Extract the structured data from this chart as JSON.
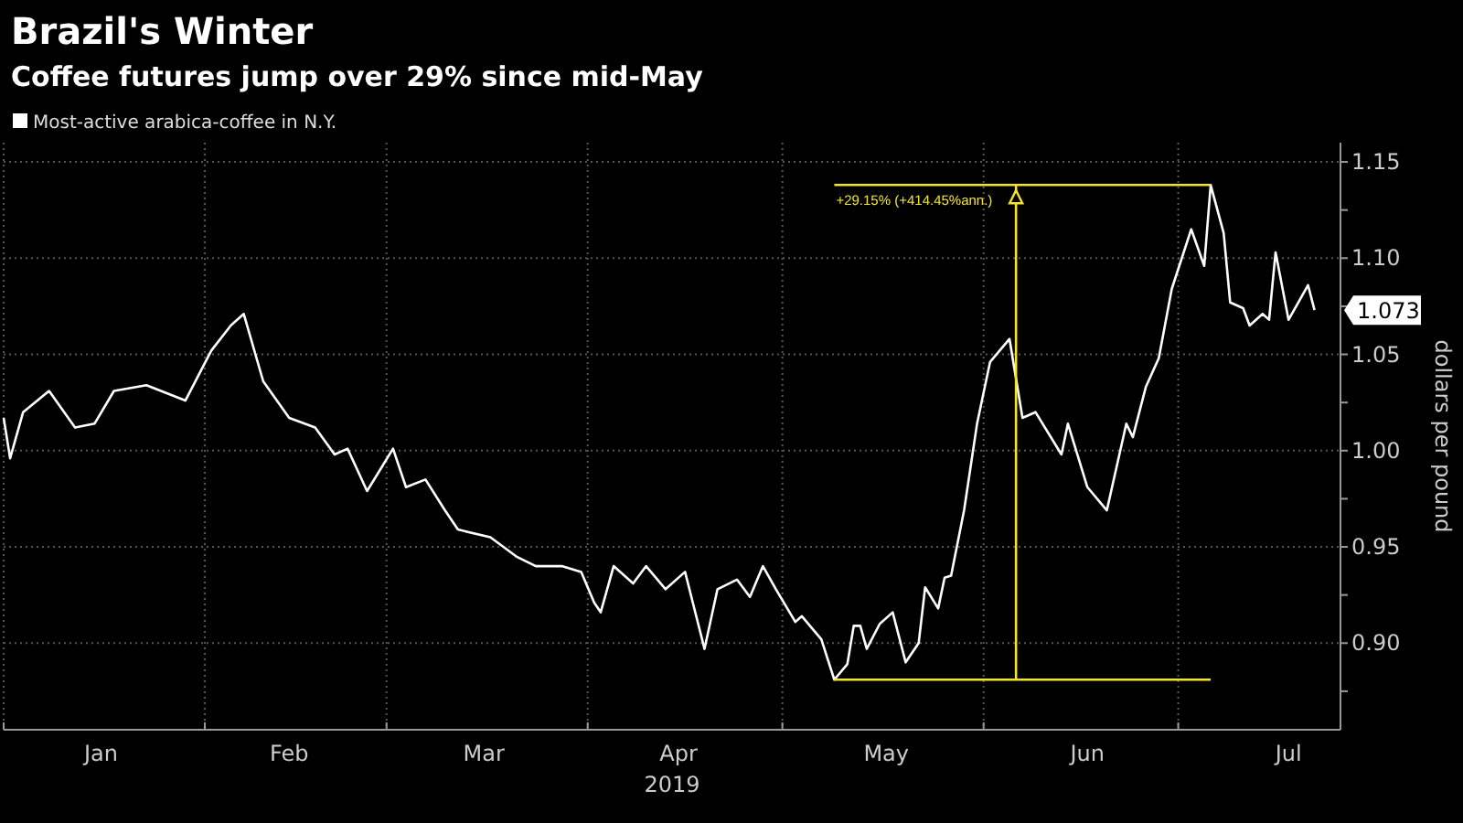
{
  "chart_data": {
    "type": "line",
    "title": "Brazil's Winter",
    "subtitle": "Coffee futures jump over 29% since mid-May",
    "ylabel": "dollars per pound",
    "xlabel": "2019",
    "legend": "top left",
    "grid": true,
    "line_style": "solid",
    "xlim": [
      "2019-01-01",
      "2019-07-26"
    ],
    "xticks": [
      {
        "value": "2019-01-01",
        "label": null
      },
      {
        "value": "2019-01-16",
        "label": "Jan"
      },
      {
        "value": "2019-02-01",
        "label": null
      },
      {
        "value": "2019-02-14",
        "label": "Feb"
      },
      {
        "value": "2019-03-01",
        "label": null
      },
      {
        "value": "2019-03-16",
        "label": "Mar"
      },
      {
        "value": "2019-04-01",
        "label": null
      },
      {
        "value": "2019-04-15",
        "label": "Apr"
      },
      {
        "value": "2019-05-01",
        "label": null
      },
      {
        "value": "2019-05-17",
        "label": "May"
      },
      {
        "value": "2019-06-01",
        "label": null
      },
      {
        "value": "2019-06-17",
        "label": "Jun"
      },
      {
        "value": "2019-07-01",
        "label": null
      },
      {
        "value": "2019-07-18",
        "label": "Jul"
      }
    ],
    "ylim": [
      0.855,
      1.16
    ],
    "yticks": [
      {
        "value": 0.875,
        "label": null
      },
      {
        "value": 0.9,
        "label": "0.90"
      },
      {
        "value": 0.925,
        "label": null
      },
      {
        "value": 0.95,
        "label": "0.95"
      },
      {
        "value": 0.975,
        "label": null
      },
      {
        "value": 1.0,
        "label": "1.00"
      },
      {
        "value": 1.025,
        "label": null
      },
      {
        "value": 1.05,
        "label": "1.05"
      },
      {
        "value": 1.075,
        "label": null
      },
      {
        "value": 1.1,
        "label": "1.10"
      },
      {
        "value": 1.125,
        "label": null
      },
      {
        "value": 1.15,
        "label": "1.15"
      }
    ],
    "series": [
      {
        "name": "Most-active arabica-coffee in N.Y.",
        "color": "#ffffff",
        "x": [
          "2019-01-01",
          "2019-01-02",
          "2019-01-04",
          "2019-01-08",
          "2019-01-12",
          "2019-01-15",
          "2019-01-18",
          "2019-01-23",
          "2019-01-29",
          "2019-02-02",
          "2019-02-05",
          "2019-02-07",
          "2019-02-10",
          "2019-02-14",
          "2019-02-18",
          "2019-02-21",
          "2019-02-23",
          "2019-02-26",
          "2019-03-02",
          "2019-03-04",
          "2019-03-07",
          "2019-03-10",
          "2019-03-12",
          "2019-03-17",
          "2019-03-21",
          "2019-03-24",
          "2019-03-28",
          "2019-03-31",
          "2019-04-02",
          "2019-04-03",
          "2019-04-05",
          "2019-04-08",
          "2019-04-10",
          "2019-04-13",
          "2019-04-16",
          "2019-04-19",
          "2019-04-21",
          "2019-04-24",
          "2019-04-26",
          "2019-04-28",
          "2019-04-30",
          "2019-05-03",
          "2019-05-04",
          "2019-05-07",
          "2019-05-09",
          "2019-05-11",
          "2019-05-12",
          "2019-05-13",
          "2019-05-14",
          "2019-05-16",
          "2019-05-18",
          "2019-05-20",
          "2019-05-22",
          "2019-05-23",
          "2019-05-25",
          "2019-05-26",
          "2019-05-27",
          "2019-05-29",
          "2019-05-31",
          "2019-06-02",
          "2019-06-05",
          "2019-06-07",
          "2019-06-09",
          "2019-06-13",
          "2019-06-14",
          "2019-06-17",
          "2019-06-20",
          "2019-06-23",
          "2019-06-24",
          "2019-06-26",
          "2019-06-28",
          "2019-06-30",
          "2019-07-03",
          "2019-07-05",
          "2019-07-06",
          "2019-07-08",
          "2019-07-09",
          "2019-07-11",
          "2019-07-12",
          "2019-07-14",
          "2019-07-15",
          "2019-07-16",
          "2019-07-18",
          "2019-07-19",
          "2019-07-21",
          "2019-07-22"
        ],
        "values": [
          1.017,
          0.996,
          1.02,
          1.031,
          1.012,
          1.014,
          1.031,
          1.034,
          1.026,
          1.052,
          1.065,
          1.071,
          1.036,
          1.017,
          1.012,
          0.998,
          1.001,
          0.979,
          1.001,
          0.981,
          0.985,
          0.969,
          0.959,
          0.955,
          0.945,
          0.94,
          0.94,
          0.937,
          0.921,
          0.916,
          0.94,
          0.931,
          0.94,
          0.928,
          0.937,
          0.897,
          0.928,
          0.933,
          0.924,
          0.94,
          0.928,
          0.911,
          0.914,
          0.902,
          0.881,
          0.889,
          0.909,
          0.909,
          0.897,
          0.91,
          0.916,
          0.89,
          0.9,
          0.929,
          0.918,
          0.934,
          0.935,
          0.969,
          1.014,
          1.046,
          1.058,
          1.017,
          1.02,
          0.998,
          1.014,
          0.981,
          0.969,
          1.014,
          1.007,
          1.033,
          1.048,
          1.084,
          1.115,
          1.096,
          1.138,
          1.113,
          1.077,
          1.074,
          1.065,
          1.071,
          1.068,
          1.103,
          1.068,
          1.074,
          1.086,
          1.073
        ]
      },
      {
        "color": "#f5e52a",
        "x": [
          "2019-05-09",
          "2019-07-06"
        ],
        "values": [
          1.138,
          1.138
        ]
      },
      {
        "color": "#f5e52a",
        "x": [
          "2019-05-09",
          "2019-07-06"
        ],
        "values": [
          0.881,
          0.881
        ]
      },
      {
        "color": "#f5e52a",
        "x": [
          "2019-06-06",
          "2019-06-06"
        ],
        "values": [
          0.881,
          1.138
        ]
      }
    ],
    "annotations": [
      {
        "text": "+29.15% (+414.45%ann.)",
        "x": "2019-05-09",
        "y": 1.138
      },
      {
        "text": "1.073",
        "x": "2019-07-22",
        "y": 1.073
      }
    ]
  }
}
